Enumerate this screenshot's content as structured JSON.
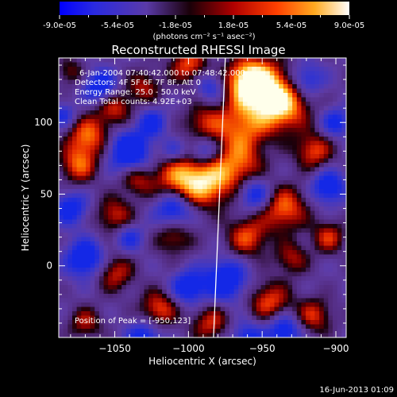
{
  "colorbar": {
    "ticks": [
      "-9.0e-05",
      "-5.4e-05",
      "-1.8e-05",
      "1.8e-05",
      "5.4e-05",
      "9.0e-05"
    ],
    "unit": "(photons cm⁻² s⁻¹ asec⁻²)",
    "colors": [
      "#0000ff",
      "#3030d0",
      "#6040a0",
      "#1a0000",
      "#a00000",
      "#ff3000",
      "#ff9000",
      "#ffd860",
      "#ffffff"
    ]
  },
  "chart_data": {
    "type": "heatmap",
    "title": "Reconstructed RHESSI Image",
    "xlabel": "Heliocentric X (arcsec)",
    "ylabel": "Heliocentric Y (arcsec)",
    "xlim": [
      -1088,
      -893
    ],
    "ylim": [
      -50,
      145
    ],
    "xticks": [
      -1050,
      -1000,
      -950,
      -900
    ],
    "yticks": [
      0,
      50,
      100
    ],
    "xtick_labels": [
      "−1050",
      "−1000",
      "−950",
      "−900"
    ],
    "ytick_labels": [
      "0",
      "50",
      "100"
    ],
    "value_range": [
      -9e-05,
      9e-05
    ],
    "annotations": [
      "6-Jan-2004 07:40:42.000 to 07:48:42.000",
      "Detectors: 4F 5F 6F 7F 8F, Att 0",
      "Energy Range: 25.0 - 50.0 keV",
      "Clean     Total counts: 4.92E+03"
    ],
    "peak_label": "Position of Peak = [-950,123]",
    "peak": [
      -950,
      123
    ],
    "limb_x": [
      [
        -975,
        145
      ],
      [
        -983,
        -50
      ]
    ]
  },
  "timestamp": "16-Jun-2013 01:09"
}
